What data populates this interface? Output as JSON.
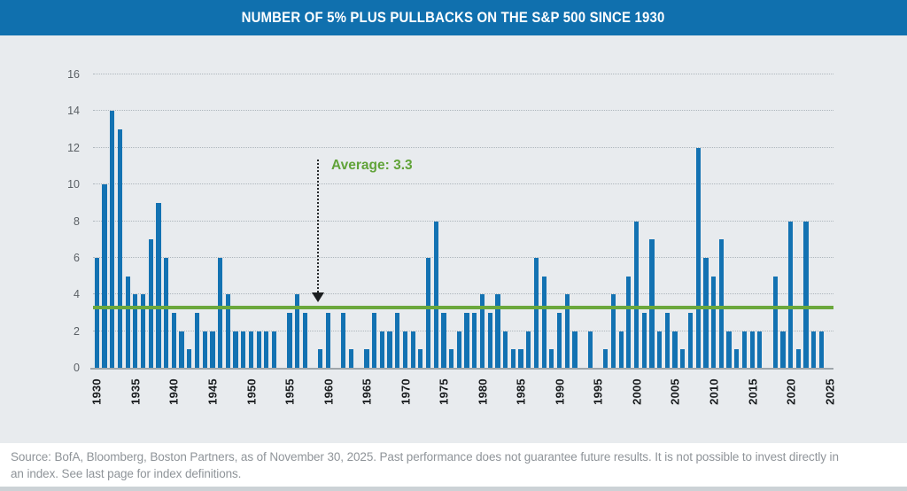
{
  "header": {
    "title": "NUMBER OF 5% PLUS PULLBACKS ON THE S&P 500 SINCE 1930"
  },
  "chart_data": {
    "type": "bar",
    "title": "NUMBER OF 5% PLUS PULLBACKS ON THE S&P 500 SINCE 1930",
    "x": [
      1930,
      1931,
      1932,
      1933,
      1934,
      1935,
      1936,
      1937,
      1938,
      1939,
      1940,
      1941,
      1942,
      1943,
      1944,
      1945,
      1946,
      1947,
      1948,
      1949,
      1950,
      1951,
      1952,
      1953,
      1954,
      1955,
      1956,
      1957,
      1958,
      1959,
      1960,
      1961,
      1962,
      1963,
      1964,
      1965,
      1966,
      1967,
      1968,
      1969,
      1970,
      1971,
      1972,
      1973,
      1974,
      1975,
      1976,
      1977,
      1978,
      1979,
      1980,
      1981,
      1982,
      1983,
      1984,
      1985,
      1986,
      1987,
      1988,
      1989,
      1990,
      1991,
      1992,
      1993,
      1994,
      1995,
      1996,
      1997,
      1998,
      1999,
      2000,
      2001,
      2002,
      2003,
      2004,
      2005,
      2006,
      2007,
      2008,
      2009,
      2010,
      2011,
      2012,
      2013,
      2014,
      2015,
      2016,
      2017,
      2018,
      2019,
      2020,
      2021,
      2022,
      2023,
      2024,
      2025
    ],
    "values": [
      6,
      10,
      14,
      13,
      5,
      4,
      4,
      7,
      9,
      6,
      3,
      2,
      1,
      3,
      2,
      2,
      6,
      4,
      2,
      2,
      2,
      2,
      2,
      2,
      0,
      3,
      4,
      3,
      0,
      1,
      3,
      0,
      3,
      1,
      0,
      1,
      3,
      2,
      2,
      3,
      2,
      2,
      1,
      6,
      8,
      3,
      1,
      2,
      3,
      3,
      4,
      3,
      4,
      2,
      1,
      1,
      2,
      6,
      5,
      1,
      3,
      4,
      2,
      0,
      2,
      0,
      1,
      4,
      2,
      5,
      8,
      3,
      7,
      2,
      3,
      2,
      1,
      3,
      12,
      6,
      5,
      7,
      2,
      1,
      2,
      2,
      2,
      0,
      5,
      2,
      8,
      1,
      8,
      2,
      2,
      0
    ],
    "average_value": 3.3,
    "average_label": "Average: 3.3",
    "ylim": [
      0,
      16
    ],
    "yticks": [
      0,
      2,
      4,
      6,
      8,
      10,
      12,
      14,
      16
    ],
    "xticks": [
      1930,
      1935,
      1940,
      1945,
      1950,
      1955,
      1960,
      1965,
      1970,
      1975,
      1980,
      1985,
      1990,
      1995,
      2000,
      2005,
      2010,
      2015,
      2020,
      2025
    ],
    "grid": true,
    "legend": false,
    "bar_color": "#1372B2",
    "average_color": "#6BA83C",
    "header_color": "#1070AE",
    "panel_color": "#E8EBEE"
  },
  "footer": {
    "source_text": "Source: BofA, Bloomberg, Boston Partners, as of November 30, 2025. Past performance does not guarantee future results. It is not possible to invest directly in\nan index. See last page for index definitions."
  }
}
